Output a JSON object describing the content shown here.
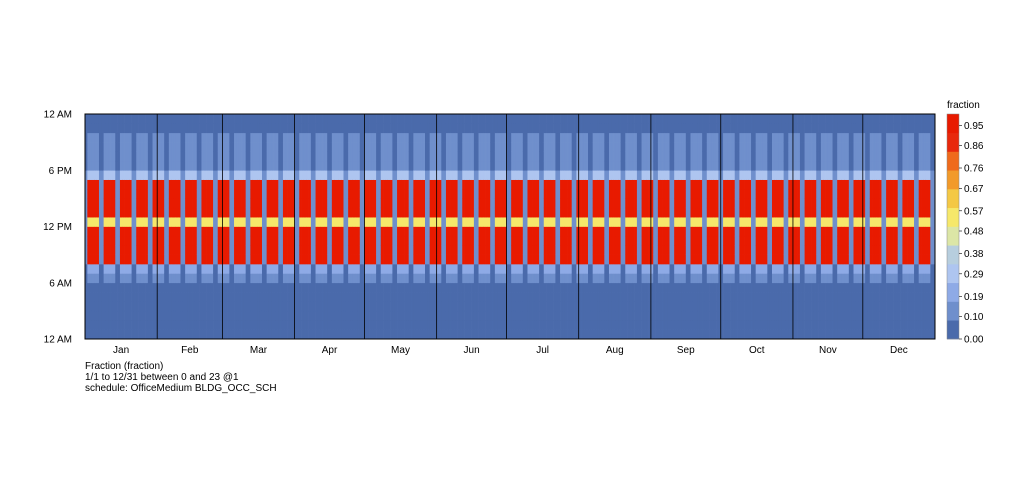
{
  "chart_data": {
    "type": "heatmap",
    "x_range": [
      "1/1",
      "12/31"
    ],
    "month_labels": [
      "Jan",
      "Feb",
      "Mar",
      "Apr",
      "May",
      "Jun",
      "Jul",
      "Aug",
      "Sep",
      "Oct",
      "Nov",
      "Dec"
    ],
    "month_days": [
      31,
      28,
      31,
      30,
      31,
      30,
      31,
      31,
      30,
      31,
      30,
      31
    ],
    "start_weekday": "Sunday",
    "y_tick_labels": [
      {
        "hour": 0,
        "label": "12 AM"
      },
      {
        "hour": 6,
        "label": "6 AM"
      },
      {
        "hour": 12,
        "label": "12 PM"
      },
      {
        "hour": 18,
        "label": "6 PM"
      },
      {
        "hour": 24,
        "label": "12 AM"
      }
    ],
    "hour_range": [
      0,
      23
    ],
    "weekday_profile": [
      0.05,
      0.05,
      0.05,
      0.05,
      0.05,
      0.05,
      0.1,
      0.2,
      0.95,
      0.95,
      0.95,
      0.95,
      0.5,
      0.95,
      0.95,
      0.95,
      0.95,
      0.3,
      0.1,
      0.1,
      0.1,
      0.1,
      0.05,
      0.05
    ],
    "weekend_profile": [
      0.05,
      0.05,
      0.05,
      0.05,
      0.05,
      0.05,
      0.05,
      0.05,
      0.1,
      0.1,
      0.1,
      0.1,
      0.1,
      0.1,
      0.1,
      0.1,
      0.1,
      0.1,
      0.05,
      0.05,
      0.05,
      0.05,
      0.05,
      0.05
    ],
    "colorbar": {
      "title": "fraction",
      "tick_labels": [
        "0.95",
        "0.86",
        "0.76",
        "0.67",
        "0.57",
        "0.48",
        "0.38",
        "0.29",
        "0.19",
        "0.10",
        "0.00"
      ],
      "colors_low_to_high": [
        "#4a6aab",
        "#6f8fcc",
        "#8eaae6",
        "#aec5f0",
        "#b7cede",
        "#dce6a6",
        "#f6e86a",
        "#f4c845",
        "#f29a2a",
        "#ef6a1c",
        "#e8280c",
        "#e81a00"
      ],
      "range": [
        0,
        1
      ]
    },
    "caption": {
      "title": "Fraction (fraction)",
      "range": "1/1 to 12/31 between 0 and 23 @1",
      "schedule": "schedule: OfficeMedium BLDG_OCC_SCH"
    }
  }
}
